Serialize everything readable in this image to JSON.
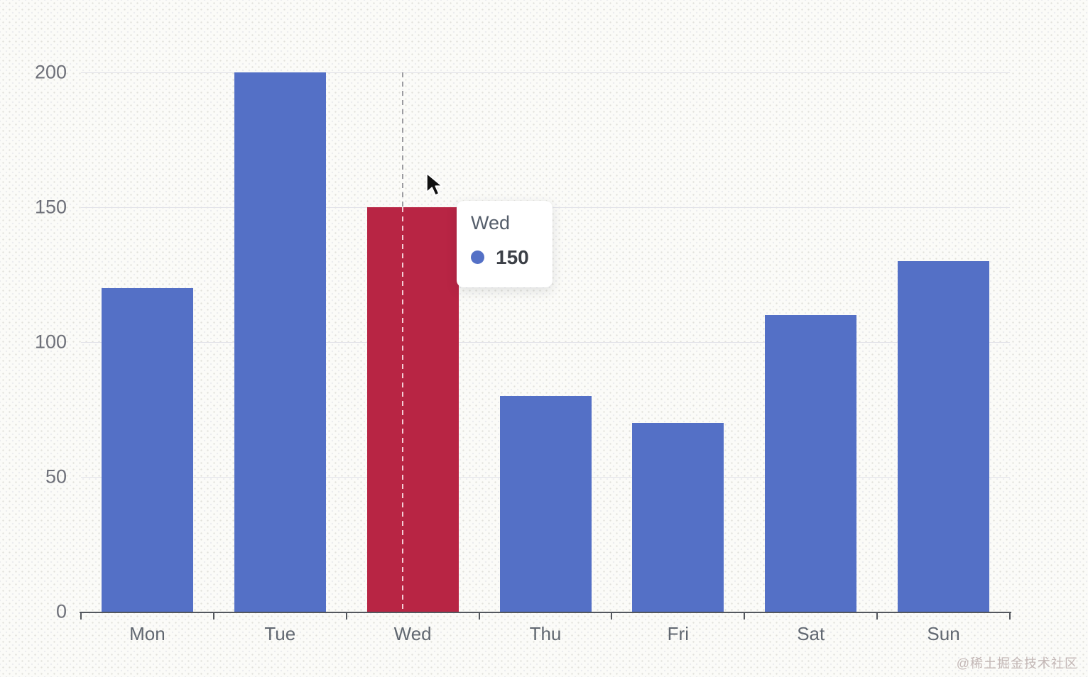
{
  "chart_data": {
    "type": "bar",
    "title": "",
    "xlabel": "",
    "ylabel": "",
    "categories": [
      "Mon",
      "Tue",
      "Wed",
      "Thu",
      "Fri",
      "Sat",
      "Sun"
    ],
    "values": [
      120,
      200,
      150,
      80,
      70,
      110,
      130
    ],
    "ylim": [
      0,
      200
    ],
    "yticks": [
      0,
      50,
      100,
      150,
      200
    ],
    "grid": true,
    "legend_position": "none",
    "bar_color": "#5470c6",
    "highlight_color": "#b82544",
    "highlighted_category": "Wed",
    "axis_pointer": {
      "category": "Wed",
      "style": "dashed"
    },
    "tooltip": {
      "title": "Wed",
      "value": "150",
      "marker_color": "#5470c6"
    }
  },
  "watermark": {
    "text": "@稀土掘金技术社区"
  }
}
